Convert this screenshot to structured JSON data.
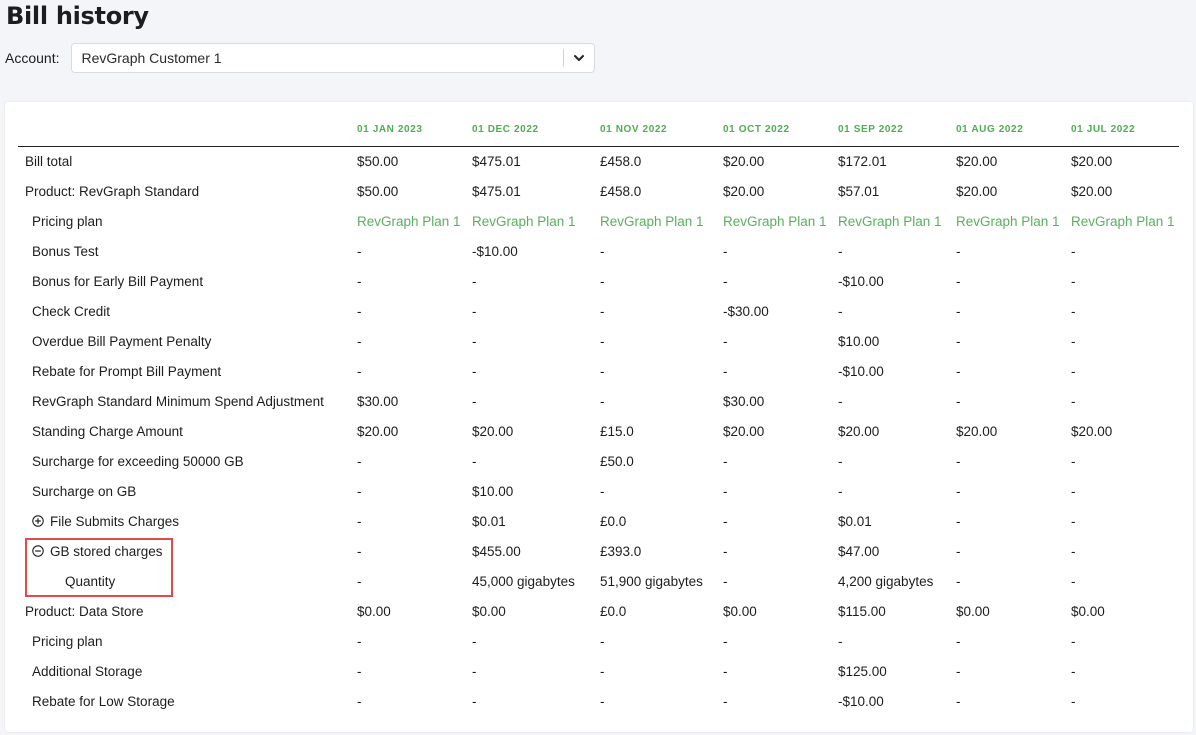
{
  "page": {
    "title": "Bill history"
  },
  "account": {
    "label": "Account:",
    "selected": "RevGraph Customer 1"
  },
  "table": {
    "columns": [
      "01 JAN 2023",
      "01 DEC 2022",
      "01 NOV 2022",
      "01 OCT 2022",
      "01 SEP 2022",
      "01 AUG 2022",
      "01 JUL 2022"
    ],
    "rows": [
      {
        "label": "Bill total",
        "indent": 0,
        "values": [
          "$50.00",
          "$475.01",
          "£458.0",
          "$20.00",
          "$172.01",
          "$20.00",
          "$20.00"
        ]
      },
      {
        "label": "Product: RevGraph Standard",
        "indent": 0,
        "values": [
          "$50.00",
          "$475.01",
          "£458.0",
          "$20.00",
          "$57.01",
          "$20.00",
          "$20.00"
        ]
      },
      {
        "label": "Pricing plan",
        "indent": 1,
        "plan": true,
        "values": [
          "RevGraph Plan 1",
          "RevGraph Plan 1",
          "RevGraph Plan 1",
          "RevGraph Plan 1",
          "RevGraph Plan 1",
          "RevGraph Plan 1",
          "RevGraph Plan 1"
        ]
      },
      {
        "label": "Bonus Test",
        "indent": 1,
        "values": [
          "-",
          "-$10.00",
          "-",
          "-",
          "-",
          "-",
          "-"
        ]
      },
      {
        "label": "Bonus for Early Bill Payment",
        "indent": 1,
        "values": [
          "-",
          "-",
          "-",
          "-",
          "-$10.00",
          "-",
          "-"
        ]
      },
      {
        "label": "Check Credit",
        "indent": 1,
        "values": [
          "-",
          "-",
          "-",
          "-$30.00",
          "-",
          "-",
          "-"
        ]
      },
      {
        "label": "Overdue Bill Payment Penalty",
        "indent": 1,
        "values": [
          "-",
          "-",
          "-",
          "-",
          "$10.00",
          "-",
          "-"
        ]
      },
      {
        "label": "Rebate for Prompt Bill Payment",
        "indent": 1,
        "values": [
          "-",
          "-",
          "-",
          "-",
          "-$10.00",
          "-",
          "-"
        ]
      },
      {
        "label": "RevGraph Standard Minimum Spend Adjustment",
        "indent": 1,
        "values": [
          "$30.00",
          "-",
          "-",
          "$30.00",
          "-",
          "-",
          "-"
        ]
      },
      {
        "label": "Standing Charge Amount",
        "indent": 1,
        "values": [
          "$20.00",
          "$20.00",
          "£15.0",
          "$20.00",
          "$20.00",
          "$20.00",
          "$20.00"
        ]
      },
      {
        "label": "Surcharge for exceeding 50000 GB",
        "indent": 1,
        "values": [
          "-",
          "-",
          "£50.0",
          "-",
          "-",
          "-",
          "-"
        ]
      },
      {
        "label": "Surcharge on GB",
        "indent": 1,
        "values": [
          "-",
          "$10.00",
          "-",
          "-",
          "-",
          "-",
          "-"
        ]
      },
      {
        "label": "File Submits Charges",
        "indent": 1,
        "toggle": "expand",
        "values": [
          "-",
          "$0.01",
          "£0.0",
          "-",
          "$0.01",
          "-",
          "-"
        ]
      },
      {
        "label": "GB stored charges",
        "indent": 1,
        "toggle": "collapse",
        "values": [
          "-",
          "$455.00",
          "£393.0",
          "-",
          "$47.00",
          "-",
          "-"
        ]
      },
      {
        "label": "Quantity",
        "indent": 2,
        "values": [
          "-",
          "45,000 gigabytes",
          "51,900 gigabytes",
          "-",
          "4,200 gigabytes",
          "-",
          "-"
        ]
      },
      {
        "label": "Product: Data Store",
        "indent": 0,
        "values": [
          "$0.00",
          "$0.00",
          "£0.0",
          "$0.00",
          "$115.00",
          "$0.00",
          "$0.00"
        ]
      },
      {
        "label": "Pricing plan",
        "indent": 1,
        "values": [
          "-",
          "-",
          "-",
          "-",
          "-",
          "-",
          "-"
        ]
      },
      {
        "label": "Additional Storage",
        "indent": 1,
        "values": [
          "-",
          "-",
          "-",
          "-",
          "$125.00",
          "-",
          "-"
        ]
      },
      {
        "label": "Rebate for Low Storage",
        "indent": 1,
        "values": [
          "-",
          "-",
          "-",
          "-",
          "-$10.00",
          "-",
          "-"
        ]
      }
    ]
  },
  "colors": {
    "accent_green": "#4caf50",
    "plan_green": "#5aaf5e",
    "highlight": "#e04b4b"
  }
}
